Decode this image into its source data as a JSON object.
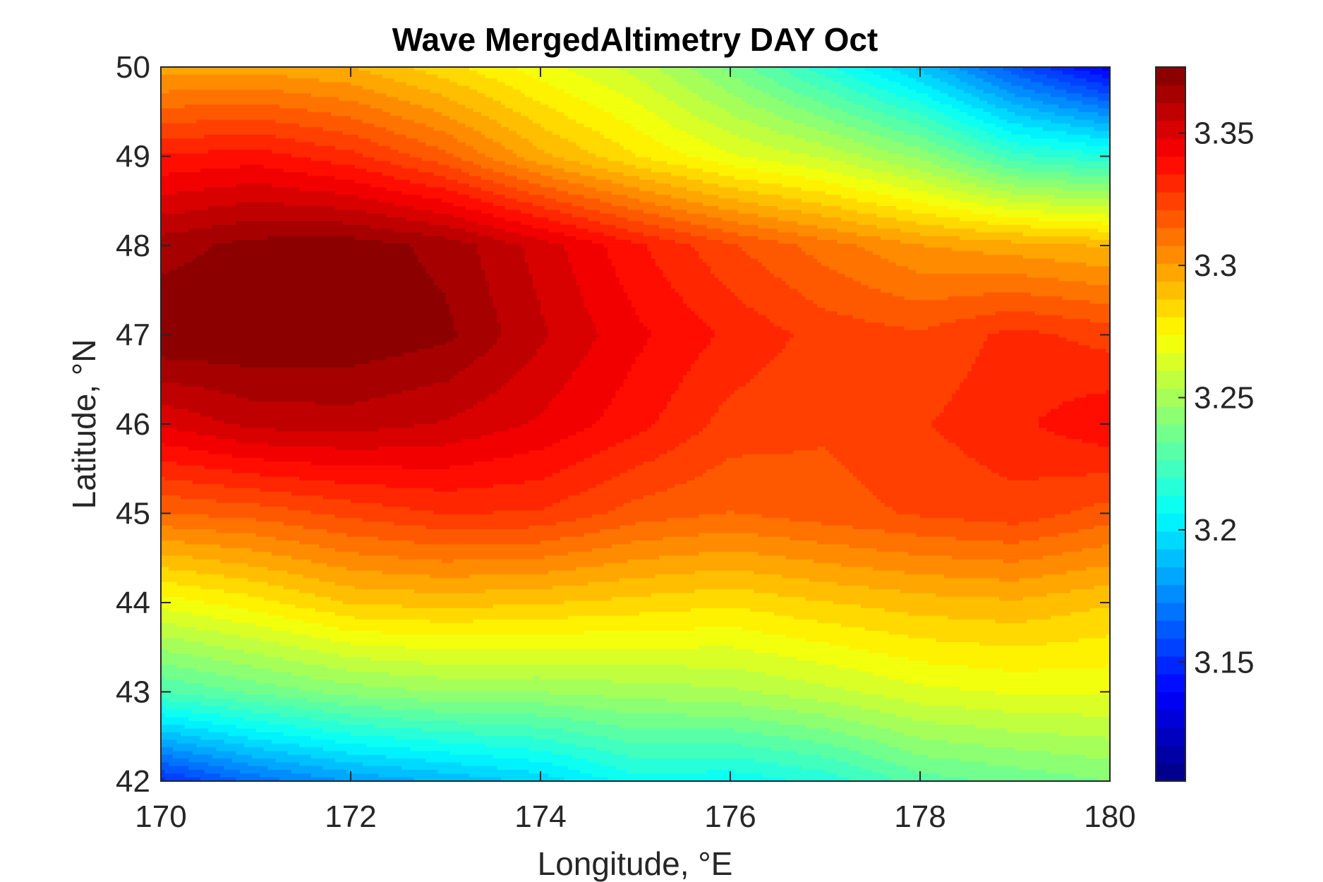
{
  "chart_data": {
    "type": "heatmap",
    "subtype": "filled-contour",
    "title": "Wave MergedAltimetry DAY Oct",
    "xlabel": "Longitude, °E",
    "ylabel": "Latitude, °N",
    "xlim": [
      170,
      180
    ],
    "ylim": [
      42,
      50
    ],
    "x_ticks": [
      "170",
      "172",
      "174",
      "176",
      "178",
      "180"
    ],
    "y_ticks": [
      "42",
      "43",
      "44",
      "45",
      "46",
      "47",
      "48",
      "49",
      "50"
    ],
    "colorbar": {
      "colormap": "jet",
      "range": [
        3.105,
        3.375
      ],
      "ticks": [
        "3.15",
        "3.2",
        "3.25",
        "3.3",
        "3.35"
      ],
      "levels": 40
    },
    "grid": false,
    "lon": [
      170,
      171,
      172,
      173,
      174,
      175,
      176,
      177,
      178,
      179,
      180
    ],
    "lat": [
      50,
      49,
      48,
      47,
      46,
      45,
      44,
      43,
      42
    ],
    "values": [
      [
        3.297,
        3.298,
        3.294,
        3.283,
        3.27,
        3.258,
        3.238,
        3.215,
        3.191,
        3.16,
        3.135
      ],
      [
        3.335,
        3.338,
        3.33,
        3.316,
        3.296,
        3.281,
        3.268,
        3.259,
        3.245,
        3.222,
        3.215
      ],
      [
        3.365,
        3.371,
        3.372,
        3.366,
        3.352,
        3.336,
        3.322,
        3.311,
        3.301,
        3.297,
        3.293
      ],
      [
        3.375,
        3.375,
        3.374,
        3.37,
        3.356,
        3.343,
        3.333,
        3.325,
        3.322,
        3.33,
        3.325
      ],
      [
        3.349,
        3.357,
        3.358,
        3.354,
        3.347,
        3.337,
        3.325,
        3.322,
        3.327,
        3.333,
        3.34
      ],
      [
        3.314,
        3.317,
        3.323,
        3.328,
        3.327,
        3.318,
        3.314,
        3.318,
        3.322,
        3.325,
        3.318
      ],
      [
        3.27,
        3.278,
        3.288,
        3.29,
        3.288,
        3.285,
        3.282,
        3.287,
        3.291,
        3.293,
        3.288
      ],
      [
        3.226,
        3.235,
        3.243,
        3.247,
        3.247,
        3.25,
        3.252,
        3.258,
        3.265,
        3.268,
        3.268
      ],
      [
        3.15,
        3.168,
        3.18,
        3.187,
        3.195,
        3.21,
        3.208,
        3.215,
        3.23,
        3.235,
        3.24
      ]
    ]
  }
}
